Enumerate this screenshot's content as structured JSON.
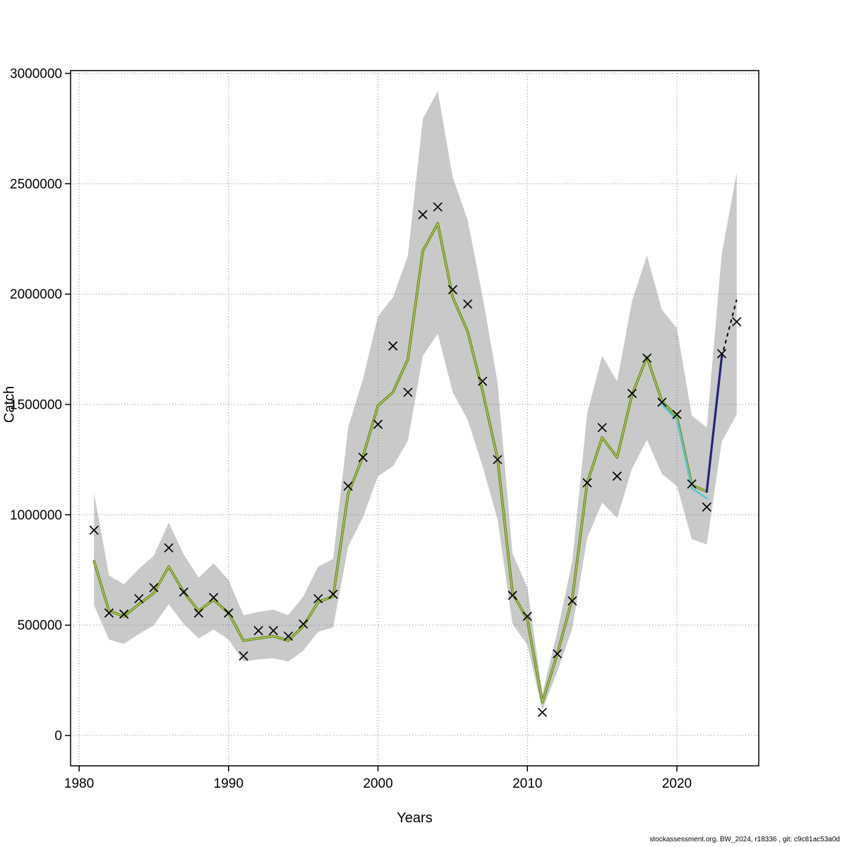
{
  "footer": {
    "text": "stockassessment.org, BW_2024, r18336 , git: c9c81ac53a0d"
  },
  "chart_data": {
    "type": "line",
    "title": "",
    "xlabel": "Years",
    "ylabel": "Catch",
    "xlim": [
      1979.43,
      2025.48
    ],
    "ylim": [
      -137500,
      3012800
    ],
    "x_ticks": [
      1980,
      1990,
      2000,
      2010,
      2020
    ],
    "y_ticks": [
      0,
      500000,
      1000000,
      1500000,
      2000000,
      2500000,
      3000000
    ],
    "grid": "dotted",
    "legend_position": "none",
    "years": [
      1981,
      1982,
      1983,
      1984,
      1985,
      1986,
      1987,
      1988,
      1989,
      1990,
      1991,
      1992,
      1993,
      1994,
      1995,
      1996,
      1997,
      1998,
      1999,
      2000,
      2001,
      2002,
      2003,
      2004,
      2005,
      2006,
      2007,
      2008,
      2009,
      2010,
      2011,
      2012,
      2013,
      2014,
      2015,
      2016,
      2017,
      2018,
      2019,
      2020,
      2021,
      2022,
      2023,
      2024
    ],
    "observed": [
      930000,
      555000,
      550000,
      620000,
      670000,
      850000,
      650000,
      555000,
      625000,
      555000,
      360000,
      475000,
      475000,
      450000,
      505000,
      620000,
      640000,
      1130000,
      1260000,
      1410000,
      1765000,
      1555000,
      2360000,
      2395000,
      2020000,
      1955000,
      1605000,
      1250000,
      635000,
      540000,
      105000,
      370000,
      610000,
      1145000,
      1395000,
      1175000,
      1550000,
      1710000,
      1510000,
      1455000,
      1140000,
      1035000,
      1730000,
      1875000
    ],
    "fit": [
      790000,
      565000,
      540000,
      595000,
      645000,
      765000,
      650000,
      565000,
      615000,
      555000,
      430000,
      440000,
      450000,
      430000,
      495000,
      605000,
      630000,
      1095000,
      1265000,
      1495000,
      1555000,
      1705000,
      2195000,
      2320000,
      1985000,
      1830000,
      1560000,
      1255000,
      645000,
      525000,
      150000,
      370000,
      620000,
      1145000,
      1350000,
      1260000,
      1545000,
      1715000,
      1515000,
      1445000,
      1135000,
      1105000
    ],
    "band_lower": [
      590000,
      435000,
      415000,
      460000,
      500000,
      595000,
      505000,
      440000,
      480000,
      435000,
      335000,
      345000,
      350000,
      335000,
      385000,
      470000,
      490000,
      855000,
      990000,
      1175000,
      1220000,
      1335000,
      1720000,
      1820000,
      1555000,
      1430000,
      1220000,
      980000,
      505000,
      410000,
      115000,
      290000,
      485000,
      895000,
      1055000,
      985000,
      1210000,
      1340000,
      1185000,
      1130000,
      890000,
      865000,
      1330000,
      1455000
    ],
    "band_upper": [
      1100000,
      725000,
      685000,
      755000,
      815000,
      965000,
      820000,
      715000,
      780000,
      705000,
      545000,
      560000,
      570000,
      545000,
      630000,
      765000,
      800000,
      1395000,
      1615000,
      1900000,
      1985000,
      2175000,
      2795000,
      2920000,
      2530000,
      2335000,
      1990000,
      1600000,
      825000,
      670000,
      190000,
      470000,
      790000,
      1460000,
      1720000,
      1605000,
      1970000,
      2175000,
      1930000,
      1845000,
      1450000,
      1395000,
      2180000,
      2550000
    ],
    "cyan_years": [
      2019,
      2020,
      2021,
      2022
    ],
    "cyan_values": [
      1500000,
      1430000,
      1120000,
      1075000
    ],
    "navy_years": [
      2022,
      2023
    ],
    "navy_values": [
      1105000,
      1715000
    ],
    "forecast_years": [
      2023,
      2024
    ],
    "forecast_values": [
      1715000,
      1975000
    ],
    "colors": {
      "band": "#c9c9c9",
      "fit_dark": "#567f1c",
      "fit_light": "#b6cc4a",
      "cyan": "#54c6cf",
      "navy": "#24247d",
      "forecast": "#000000",
      "marker": "#000000",
      "grid": "#808080",
      "axis": "#000000"
    }
  }
}
